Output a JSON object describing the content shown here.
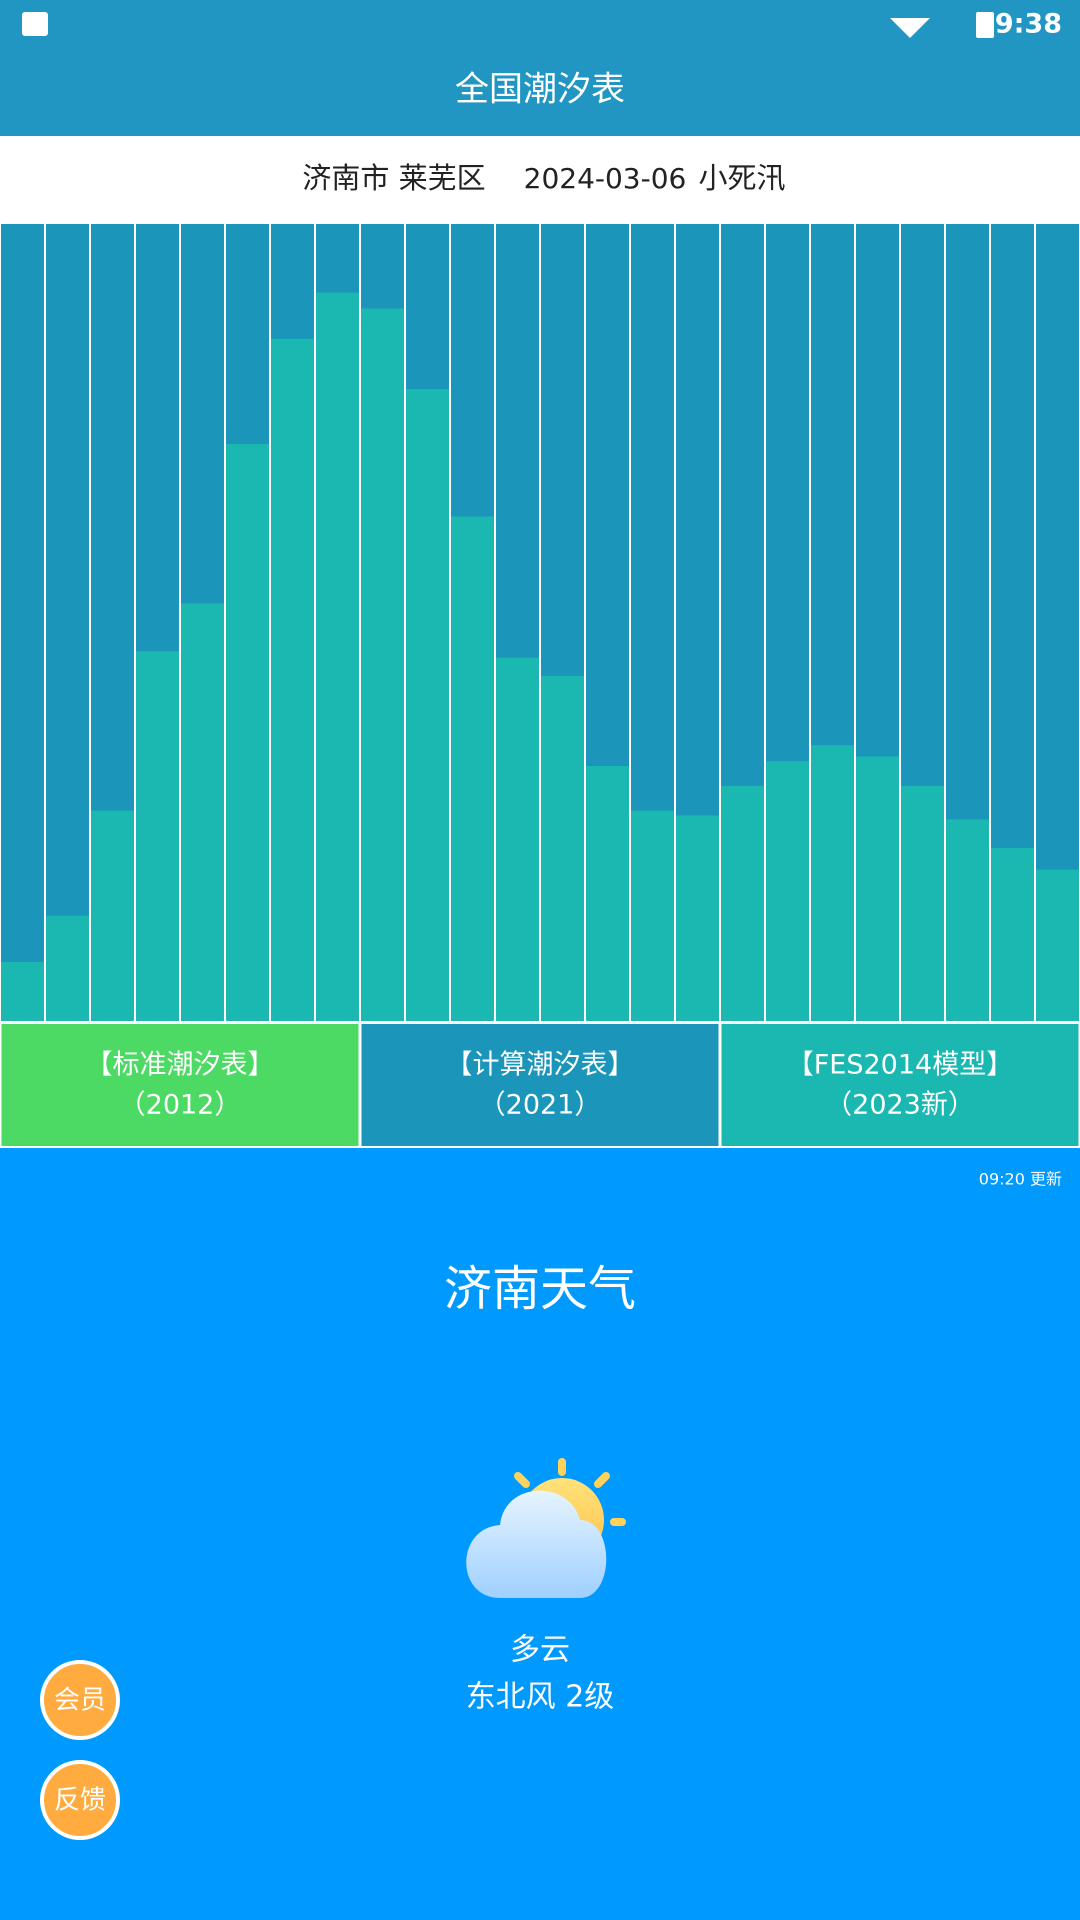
{
  "status_bar": {
    "time": "9:38"
  },
  "header": {
    "title": "全国潮汐表"
  },
  "location_bar": {
    "place": "济南市 莱芜区",
    "date": "2024-03-06",
    "tide_type": "小死汛"
  },
  "tide_chart": {
    "type": "bar",
    "values": [
      7.4,
      13.2,
      26.4,
      46.4,
      52.4,
      72.4,
      85.6,
      91.4,
      89.4,
      79.3,
      63.3,
      45.6,
      43.3,
      32,
      26.4,
      25.8,
      29.5,
      32.6,
      34.6,
      33.2,
      29.5,
      25.3,
      21.7,
      19
    ],
    "ylim": [
      0,
      100
    ],
    "color": "#1bb8b1",
    "background_color": "#1b95b9"
  },
  "tabs": [
    {
      "label": "【标准潮汐表】",
      "sub": "（2012）",
      "color": "#4cd964"
    },
    {
      "label": "【计算潮汐表】",
      "sub": "（2021）",
      "color": "#1b95b9"
    },
    {
      "label": "【FES2014模型】",
      "sub": "（2023新）",
      "color": "#1bb8b1"
    }
  ],
  "weather": {
    "updated": "09:20 更新",
    "title": "济南天气",
    "condition": "多云",
    "wind": "东北风 2级"
  },
  "floating_buttons": [
    "会员",
    "反馈"
  ]
}
